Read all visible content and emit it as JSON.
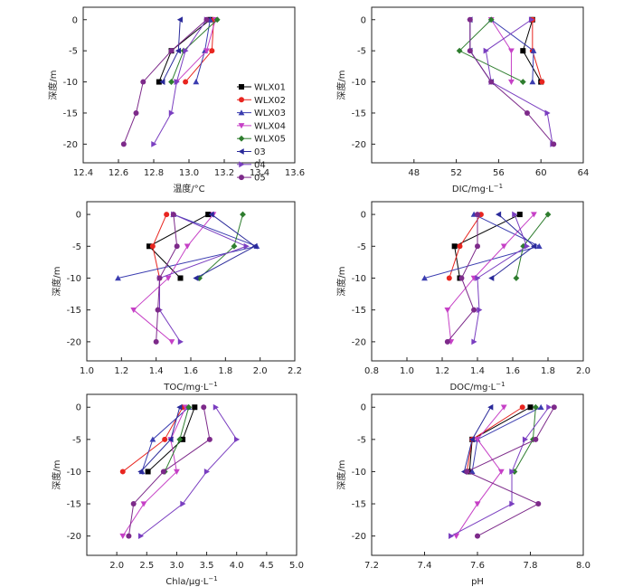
{
  "series_styles": [
    {
      "name": "WLX01",
      "color": "#000000",
      "marker": "square"
    },
    {
      "name": "WLX02",
      "color": "#e8251f",
      "marker": "circle"
    },
    {
      "name": "WLX03",
      "color": "#3b3db0",
      "marker": "triangle-up"
    },
    {
      "name": "WLX04",
      "color": "#c640c6",
      "marker": "triangle-down"
    },
    {
      "name": "WLX05",
      "color": "#2e7d2e",
      "marker": "diamond"
    },
    {
      "name": "03",
      "color": "#2a2a9a",
      "marker": "triangle-left"
    },
    {
      "name": "04",
      "color": "#7a3ec0",
      "marker": "triangle-right"
    },
    {
      "name": "05",
      "color": "#7d2a8a",
      "marker": "circle"
    }
  ],
  "chart_data": [
    {
      "type": "line",
      "xlabel": "温度/°C",
      "ylabel": "深度/m",
      "xlim": [
        12.4,
        13.6
      ],
      "xticks": [
        "12.4",
        "12.6",
        "12.8",
        "13.0",
        "13.2",
        "13.4",
        "13.6"
      ],
      "ylim": [
        -23,
        2
      ],
      "yticks": [
        "0",
        "-5",
        "-10",
        "-15",
        "-20"
      ],
      "legend": "inside",
      "series": [
        {
          "name": "WLX01",
          "points": [
            [
              13.12,
              0
            ],
            [
              12.9,
              -5
            ],
            [
              12.83,
              -10
            ]
          ]
        },
        {
          "name": "WLX02",
          "points": [
            [
              13.14,
              0
            ],
            [
              13.13,
              -5
            ],
            [
              12.98,
              -10
            ]
          ]
        },
        {
          "name": "WLX03",
          "points": [
            [
              13.12,
              0
            ],
            [
              13.09,
              -5
            ],
            [
              13.04,
              -10
            ]
          ]
        },
        {
          "name": "WLX04",
          "points": [
            [
              13.15,
              0
            ],
            [
              13.1,
              -5
            ],
            [
              12.93,
              -10
            ]
          ]
        },
        {
          "name": "WLX05",
          "points": [
            [
              13.16,
              0
            ],
            [
              12.97,
              -5
            ],
            [
              12.9,
              -10
            ]
          ]
        },
        {
          "name": "03",
          "points": [
            [
              12.95,
              0
            ],
            [
              12.94,
              -5
            ],
            [
              12.85,
              -10
            ]
          ]
        },
        {
          "name": "04",
          "points": [
            [
              13.1,
              0
            ],
            [
              12.98,
              -5
            ],
            [
              12.93,
              -10
            ],
            [
              12.9,
              -15
            ],
            [
              12.8,
              -20
            ]
          ]
        },
        {
          "name": "05",
          "points": [
            [
              13.1,
              0
            ],
            [
              12.9,
              -5
            ],
            [
              12.74,
              -10
            ],
            [
              12.7,
              -15
            ],
            [
              12.63,
              -20
            ]
          ]
        }
      ]
    },
    {
      "type": "line",
      "xlabel": "DIC/mg·L",
      "xlabel_sup": "−1",
      "ylabel": "深度/m",
      "xlim": [
        44,
        64
      ],
      "xticks": [
        "48",
        "52",
        "56",
        "60",
        "64"
      ],
      "ylim": [
        -23,
        2
      ],
      "yticks": [
        "0",
        "-5",
        "-10",
        "-15",
        "-20"
      ],
      "series": [
        {
          "name": "WLX01",
          "points": [
            [
              59.2,
              0
            ],
            [
              58.3,
              -5
            ],
            [
              60,
              -10
            ]
          ]
        },
        {
          "name": "WLX02",
          "points": [
            [
              59.2,
              0
            ],
            [
              59.2,
              -5
            ],
            [
              60.1,
              -10
            ]
          ]
        },
        {
          "name": "WLX03",
          "points": [
            [
              55.3,
              0
            ],
            [
              59.3,
              -5
            ],
            [
              59.2,
              -10
            ]
          ]
        },
        {
          "name": "WLX04",
          "points": [
            [
              55.3,
              0
            ],
            [
              57.2,
              -5
            ],
            [
              57.2,
              -10
            ]
          ]
        },
        {
          "name": "WLX05",
          "points": [
            [
              55.3,
              0
            ],
            [
              52.3,
              -5
            ],
            [
              58.3,
              -10
            ]
          ]
        },
        {
          "name": "03",
          "points": [
            [
              53.3,
              0
            ],
            [
              53.3,
              -5
            ],
            [
              55.3,
              -10
            ]
          ]
        },
        {
          "name": "04",
          "points": [
            [
              59.1,
              0
            ],
            [
              54.8,
              -5
            ],
            [
              55.3,
              -10
            ],
            [
              60.6,
              -15
            ],
            [
              61.1,
              -20
            ]
          ]
        },
        {
          "name": "05",
          "points": [
            [
              53.3,
              0
            ],
            [
              53.3,
              -5
            ],
            [
              55.3,
              -10
            ],
            [
              58.7,
              -15
            ],
            [
              61.2,
              -20
            ]
          ]
        }
      ]
    },
    {
      "type": "line",
      "xlabel": "TOC/mg·L",
      "xlabel_sup": "−1",
      "ylabel": "深度/m",
      "xlim": [
        1.0,
        2.2
      ],
      "xticks": [
        "1.0",
        "1.2",
        "1.4",
        "1.6",
        "1.8",
        "2.0",
        "2.2"
      ],
      "ylim": [
        -23,
        2
      ],
      "yticks": [
        "0",
        "-5",
        "-10",
        "-15",
        "-20"
      ],
      "series": [
        {
          "name": "WLX01",
          "points": [
            [
              1.7,
              0
            ],
            [
              1.36,
              -5
            ],
            [
              1.54,
              -10
            ]
          ]
        },
        {
          "name": "WLX02",
          "points": [
            [
              1.46,
              0
            ],
            [
              1.38,
              -5
            ],
            [
              1.42,
              -10
            ]
          ]
        },
        {
          "name": "WLX03",
          "points": [
            [
              1.5,
              0
            ],
            [
              1.98,
              -5
            ],
            [
              1.18,
              -10
            ]
          ]
        },
        {
          "name": "WLX04",
          "points": [
            [
              1.73,
              0
            ],
            [
              1.58,
              -5
            ],
            [
              1.47,
              -10
            ],
            [
              1.27,
              -15
            ],
            [
              1.49,
              -20
            ]
          ]
        },
        {
          "name": "WLX05",
          "points": [
            [
              1.9,
              0
            ],
            [
              1.85,
              -5
            ],
            [
              1.65,
              -10
            ]
          ]
        },
        {
          "name": "03",
          "points": [
            [
              1.72,
              0
            ],
            [
              1.97,
              -5
            ],
            [
              1.63,
              -10
            ]
          ]
        },
        {
          "name": "04",
          "points": [
            [
              1.5,
              0
            ],
            [
              1.92,
              -5
            ],
            [
              1.42,
              -10
            ],
            [
              1.42,
              -15
            ],
            [
              1.54,
              -20
            ]
          ]
        },
        {
          "name": "05",
          "points": [
            [
              1.5,
              0
            ],
            [
              1.52,
              -5
            ],
            [
              1.42,
              -10
            ],
            [
              1.41,
              -15
            ],
            [
              1.4,
              -20
            ]
          ]
        }
      ]
    },
    {
      "type": "line",
      "xlabel": "DOC/mg·L",
      "xlabel_sup": "−1",
      "ylabel": "深度/m",
      "xlim": [
        0.8,
        2.0
      ],
      "xticks": [
        "0.8",
        "1.0",
        "1.2",
        "1.4",
        "1.6",
        "1.8",
        "2.0"
      ],
      "ylim": [
        -23,
        2
      ],
      "yticks": [
        "0",
        "-5",
        "-10",
        "-15",
        "-20"
      ],
      "series": [
        {
          "name": "WLX01",
          "points": [
            [
              1.64,
              0
            ],
            [
              1.27,
              -5
            ],
            [
              1.3,
              -10
            ]
          ]
        },
        {
          "name": "WLX02",
          "points": [
            [
              1.42,
              0
            ],
            [
              1.3,
              -5
            ],
            [
              1.24,
              -10
            ]
          ]
        },
        {
          "name": "WLX03",
          "points": [
            [
              1.38,
              0
            ],
            [
              1.75,
              -5
            ],
            [
              1.1,
              -10
            ]
          ]
        },
        {
          "name": "WLX04",
          "points": [
            [
              1.72,
              0
            ],
            [
              1.55,
              -5
            ],
            [
              1.38,
              -10
            ],
            [
              1.23,
              -15
            ],
            [
              1.25,
              -20
            ]
          ]
        },
        {
          "name": "WLX05",
          "points": [
            [
              1.8,
              0
            ],
            [
              1.66,
              -5
            ],
            [
              1.62,
              -10
            ]
          ]
        },
        {
          "name": "03",
          "points": [
            [
              1.52,
              0
            ],
            [
              1.72,
              -5
            ],
            [
              1.48,
              -10
            ]
          ]
        },
        {
          "name": "04",
          "points": [
            [
              1.61,
              0
            ],
            [
              1.68,
              -5
            ],
            [
              1.4,
              -10
            ],
            [
              1.41,
              -15
            ],
            [
              1.38,
              -20
            ]
          ]
        },
        {
          "name": "05",
          "points": [
            [
              1.4,
              0
            ],
            [
              1.4,
              -5
            ],
            [
              1.31,
              -10
            ],
            [
              1.38,
              -15
            ],
            [
              1.23,
              -20
            ]
          ]
        }
      ]
    },
    {
      "type": "line",
      "xlabel": "Chla/μg·L",
      "xlabel_sup": "−1",
      "ylabel": "深度/m",
      "xlim": [
        1.5,
        5.0
      ],
      "xticks": [
        "2.0",
        "2.5",
        "3.0",
        "3.5",
        "4.0",
        "4.5",
        "5.0"
      ],
      "ylim": [
        -23,
        2
      ],
      "yticks": [
        "0",
        "-5",
        "-10",
        "-15",
        "-20"
      ],
      "series": [
        {
          "name": "WLX01",
          "points": [
            [
              3.3,
              0
            ],
            [
              3.1,
              -5
            ],
            [
              2.52,
              -10
            ]
          ]
        },
        {
          "name": "WLX02",
          "points": [
            [
              3.1,
              0
            ],
            [
              2.8,
              -5
            ],
            [
              2.1,
              -10
            ]
          ]
        },
        {
          "name": "WLX03",
          "points": [
            [
              3.2,
              0
            ],
            [
              2.6,
              -5
            ],
            [
              2.42,
              -10
            ]
          ]
        },
        {
          "name": "WLX04",
          "points": [
            [
              3.15,
              0
            ],
            [
              2.9,
              -5
            ],
            [
              3.0,
              -10
            ],
            [
              2.45,
              -15
            ],
            [
              2.1,
              -20
            ]
          ]
        },
        {
          "name": "WLX05",
          "points": [
            [
              3.2,
              0
            ],
            [
              3.05,
              -5
            ],
            [
              2.8,
              -10
            ]
          ]
        },
        {
          "name": "03",
          "points": [
            [
              3.05,
              0
            ],
            [
              2.9,
              -5
            ],
            [
              2.4,
              -10
            ]
          ]
        },
        {
          "name": "04",
          "points": [
            [
              3.65,
              0
            ],
            [
              4.0,
              -5
            ],
            [
              3.5,
              -10
            ],
            [
              3.1,
              -15
            ],
            [
              2.4,
              -20
            ]
          ]
        },
        {
          "name": "05",
          "points": [
            [
              3.45,
              0
            ],
            [
              3.55,
              -5
            ],
            [
              2.78,
              -10
            ],
            [
              2.28,
              -15
            ],
            [
              2.2,
              -20
            ]
          ]
        }
      ]
    },
    {
      "type": "line",
      "xlabel": "pH",
      "ylabel": "深度/m",
      "xlim": [
        7.2,
        8.0
      ],
      "xticks": [
        "7.2",
        "7.4",
        "7.6",
        "7.8",
        "8.0"
      ],
      "ylim": [
        -23,
        2
      ],
      "yticks": [
        "0",
        "-5",
        "-10",
        "-15",
        "-20"
      ],
      "series": [
        {
          "name": "WLX01",
          "points": [
            [
              7.8,
              0
            ],
            [
              7.58,
              -5
            ],
            [
              7.57,
              -10
            ]
          ]
        },
        {
          "name": "WLX02",
          "points": [
            [
              7.77,
              0
            ],
            [
              7.58,
              -5
            ],
            [
              7.56,
              -10
            ]
          ]
        },
        {
          "name": "WLX03",
          "points": [
            [
              7.84,
              0
            ],
            [
              7.6,
              -5
            ],
            [
              7.58,
              -10
            ]
          ]
        },
        {
          "name": "WLX04",
          "points": [
            [
              7.7,
              0
            ],
            [
              7.6,
              -5
            ],
            [
              7.69,
              -10
            ],
            [
              7.6,
              -15
            ],
            [
              7.52,
              -20
            ]
          ]
        },
        {
          "name": "WLX05",
          "points": [
            [
              7.82,
              0
            ],
            [
              7.81,
              -5
            ],
            [
              7.74,
              -10
            ]
          ]
        },
        {
          "name": "03",
          "points": [
            [
              7.65,
              0
            ],
            [
              7.58,
              -5
            ],
            [
              7.55,
              -10
            ]
          ]
        },
        {
          "name": "04",
          "points": [
            [
              7.87,
              0
            ],
            [
              7.78,
              -5
            ],
            [
              7.73,
              -10
            ],
            [
              7.73,
              -15
            ],
            [
              7.5,
              -20
            ]
          ]
        },
        {
          "name": "05",
          "points": [
            [
              7.89,
              0
            ],
            [
              7.82,
              -5
            ],
            [
              7.56,
              -10
            ],
            [
              7.83,
              -15
            ],
            [
              7.6,
              -20
            ]
          ]
        }
      ]
    }
  ]
}
